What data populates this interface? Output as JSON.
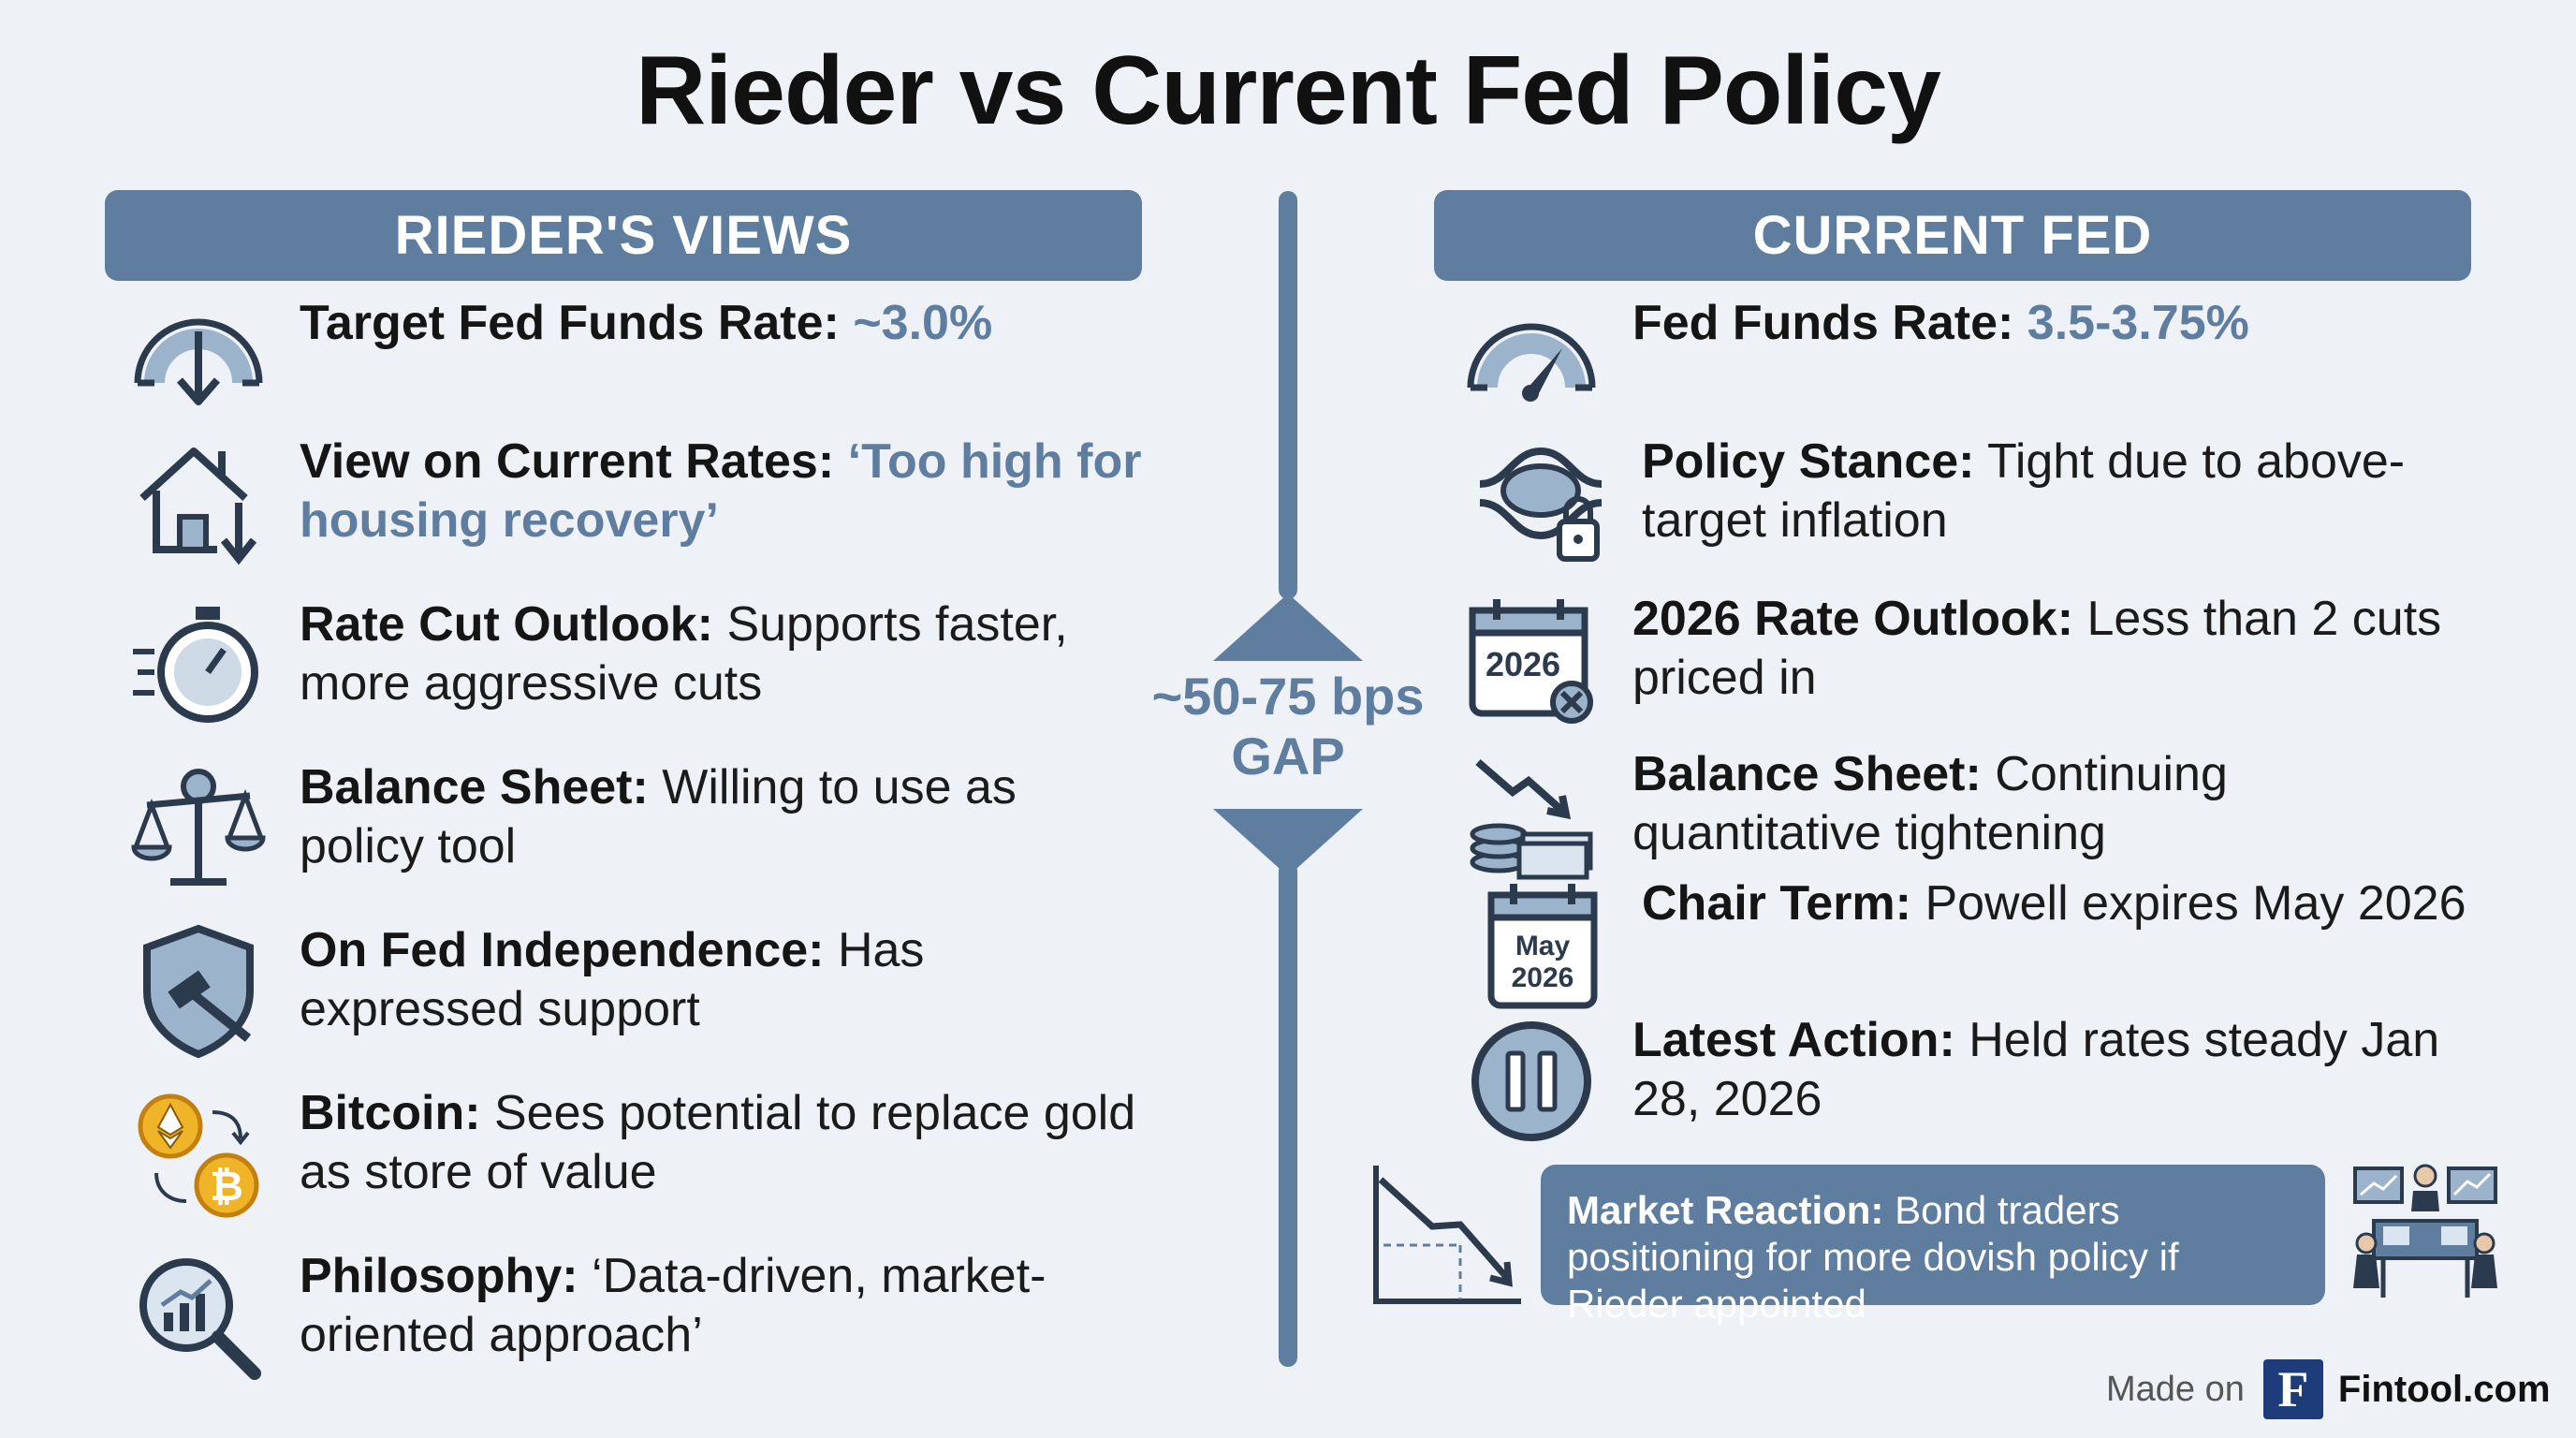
{
  "title": "Rieder vs Current Fed Policy",
  "colors": {
    "accent": "#5f7e9f",
    "background": "#eef1f6",
    "text": "#1b1b1b"
  },
  "left": {
    "header": "RIEDER'S VIEWS",
    "items": [
      {
        "icon": "speedometer-down-icon",
        "label": "Target Fed Funds Rate:",
        "text": "",
        "highlight": "~3.0%"
      },
      {
        "icon": "house-down-icon",
        "label": "View on Current Rates:",
        "text": "",
        "highlight": "‘Too high for housing recovery’"
      },
      {
        "icon": "stopwatch-icon",
        "label": "Rate Cut Outlook:",
        "text": "Supports faster, more aggressive cuts",
        "highlight": ""
      },
      {
        "icon": "balance-scale-icon",
        "label": "Balance Sheet:",
        "text": "Willing to use as policy tool",
        "highlight": ""
      },
      {
        "icon": "shield-gavel-icon",
        "label": "On Fed Independence:",
        "text": "Has expressed support",
        "highlight": ""
      },
      {
        "icon": "crypto-coins-icon",
        "label": "Bitcoin:",
        "text": "Sees potential to replace gold as store of value",
        "highlight": ""
      },
      {
        "icon": "magnifier-chart-icon",
        "label": "Philosophy:",
        "text": "‘Data-driven, market-oriented approach’",
        "highlight": ""
      }
    ]
  },
  "right": {
    "header": "CURRENT FED",
    "items": [
      {
        "icon": "speedometer-high-icon",
        "label": "Fed Funds Rate:",
        "text": "",
        "highlight": "3.5-3.75%"
      },
      {
        "icon": "knot-lock-icon",
        "label": "Policy Stance:",
        "text": "Tight due to above-target inflation",
        "highlight": ""
      },
      {
        "icon": "calendar-2026-icon",
        "icon_text": "2026",
        "label": "2026 Rate Outlook:",
        "text": "Less than 2 cuts priced in",
        "highlight": ""
      },
      {
        "icon": "money-stack-down-icon",
        "label": "Balance Sheet:",
        "text": "Continuing quantitative tightening",
        "highlight": ""
      },
      {
        "icon": "calendar-may-2026-icon",
        "icon_text_1": "May",
        "icon_text_2": "2026",
        "label": "Chair Term:",
        "text": "Powell expires May 2026",
        "highlight": ""
      },
      {
        "icon": "pause-icon",
        "label": "Latest Action:",
        "text": "Held rates steady Jan 28, 2026",
        "highlight": ""
      }
    ]
  },
  "gap": {
    "line1": "~50-75 bps",
    "line2": "GAP"
  },
  "market": {
    "label": "Market Reaction:",
    "text": "Bond traders positioning for more dovish policy if Rieder appointed"
  },
  "footer": {
    "made": "Made on",
    "logo_letter": "F",
    "brand": "Fintool.com"
  }
}
